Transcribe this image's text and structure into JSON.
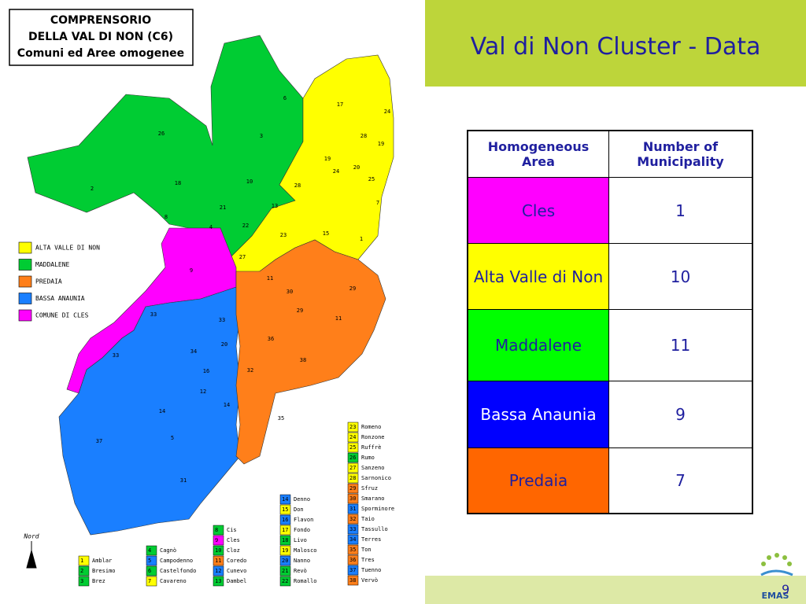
{
  "map": {
    "title": [
      "COMPRENSORIO",
      "DELLA VAL DI NON (C6)",
      "Comuni ed Aree omogenee"
    ],
    "legend": [
      {
        "label": "ALTA VALLE DI NON",
        "color": "#ffff00"
      },
      {
        "label": "MADDALENE",
        "color": "#00cc33"
      },
      {
        "label": "PREDAIA",
        "color": "#ff7f1a"
      },
      {
        "label": "BASSA ANAUNIA",
        "color": "#1a7fff"
      },
      {
        "label": "COMUNE DI CLES",
        "color": "#ff00ff"
      }
    ],
    "north": "Nord",
    "region_labels": [
      "6",
      "17",
      "24",
      "26",
      "3",
      "28",
      "19",
      "19",
      "24",
      "20",
      "25",
      "18",
      "10",
      "2",
      "28",
      "7",
      "21",
      "13",
      "8",
      "4",
      "22",
      "23",
      "15",
      "1",
      "27",
      "9",
      "11",
      "30",
      "29",
      "29",
      "11",
      "33",
      "33",
      "20",
      "36",
      "34",
      "16",
      "38",
      "32",
      "33",
      "12",
      "14",
      "14",
      "35",
      "5",
      "37",
      "31"
    ],
    "municipalities": [
      {
        "number": "1",
        "name": "Amblar",
        "color": "#ffff00"
      },
      {
        "number": "2",
        "name": "Bresimo",
        "color": "#00cc33"
      },
      {
        "number": "3",
        "name": "Brez",
        "color": "#00cc33"
      },
      {
        "number": "4",
        "name": "Cagnò",
        "color": "#00cc33"
      },
      {
        "number": "5",
        "name": "Campodenno",
        "color": "#1a7fff"
      },
      {
        "number": "6",
        "name": "Castelfondo",
        "color": "#00cc33"
      },
      {
        "number": "7",
        "name": "Cavareno",
        "color": "#ffff00"
      },
      {
        "number": "8",
        "name": "Cis",
        "color": "#00cc33"
      },
      {
        "number": "9",
        "name": "Cles",
        "color": "#ff00ff"
      },
      {
        "number": "10",
        "name": "Cloz",
        "color": "#00cc33"
      },
      {
        "number": "11",
        "name": "Coredo",
        "color": "#ff7f1a"
      },
      {
        "number": "12",
        "name": "Cunevo",
        "color": "#1a7fff"
      },
      {
        "number": "13",
        "name": "Dambel",
        "color": "#00cc33"
      },
      {
        "number": "14",
        "name": "Denno",
        "color": "#1a7fff"
      },
      {
        "number": "15",
        "name": "Don",
        "color": "#ffff00"
      },
      {
        "number": "16",
        "name": "Flavon",
        "color": "#1a7fff"
      },
      {
        "number": "17",
        "name": "Fondo",
        "color": "#ffff00"
      },
      {
        "number": "18",
        "name": "Livo",
        "color": "#00cc33"
      },
      {
        "number": "19",
        "name": "Malosco",
        "color": "#ffff00"
      },
      {
        "number": "20",
        "name": "Nanno",
        "color": "#1a7fff"
      },
      {
        "number": "21",
        "name": "Revò",
        "color": "#00cc33"
      },
      {
        "number": "22",
        "name": "Romallo",
        "color": "#00cc33"
      },
      {
        "number": "23",
        "name": "Romeno",
        "color": "#ffff00"
      },
      {
        "number": "24",
        "name": "Ronzone",
        "color": "#ffff00"
      },
      {
        "number": "25",
        "name": "Ruffrè",
        "color": "#ffff00"
      },
      {
        "number": "26",
        "name": "Rumo",
        "color": "#00cc33"
      },
      {
        "number": "27",
        "name": "Sanzeno",
        "color": "#ffff00"
      },
      {
        "number": "28",
        "name": "Sarnonico",
        "color": "#ffff00"
      },
      {
        "number": "29",
        "name": "Sfruz",
        "color": "#ff7f1a"
      },
      {
        "number": "30",
        "name": "Smarano",
        "color": "#ff7f1a"
      },
      {
        "number": "31",
        "name": "Sporminore",
        "color": "#1a7fff"
      },
      {
        "number": "32",
        "name": "Taio",
        "color": "#ff7f1a"
      },
      {
        "number": "33",
        "name": "Tassullo",
        "color": "#1a7fff"
      },
      {
        "number": "34",
        "name": "Terres",
        "color": "#1a7fff"
      },
      {
        "number": "35",
        "name": "Ton",
        "color": "#ff7f1a"
      },
      {
        "number": "36",
        "name": "Tres",
        "color": "#ff7f1a"
      },
      {
        "number": "37",
        "name": "Tuenno",
        "color": "#1a7fff"
      },
      {
        "number": "38",
        "name": "Vervò",
        "color": "#ff7f1a"
      }
    ]
  },
  "slide": {
    "title": "Val di Non Cluster - Data",
    "page": "9",
    "logo": "EMAS"
  },
  "table": {
    "header": [
      "Homogeneous Area",
      "Number of Municipality"
    ],
    "rows": [
      {
        "area": "Cles",
        "count": 1,
        "color": "#ff00ff",
        "text_color": "#1f1f9f"
      },
      {
        "area": "Alta Valle di Non",
        "count": 10,
        "color": "#ffff00",
        "text_color": "#1f1f9f"
      },
      {
        "area": "Maddalene",
        "count": 11,
        "color": "#00ff00",
        "text_color": "#1f1f9f"
      },
      {
        "area": "Bassa Anaunia",
        "count": 9,
        "color": "#0000ff",
        "text_color": "#ffffff"
      },
      {
        "area": "Predaia",
        "count": 7,
        "color": "#ff6600",
        "text_color": "#1f1f9f"
      }
    ]
  }
}
